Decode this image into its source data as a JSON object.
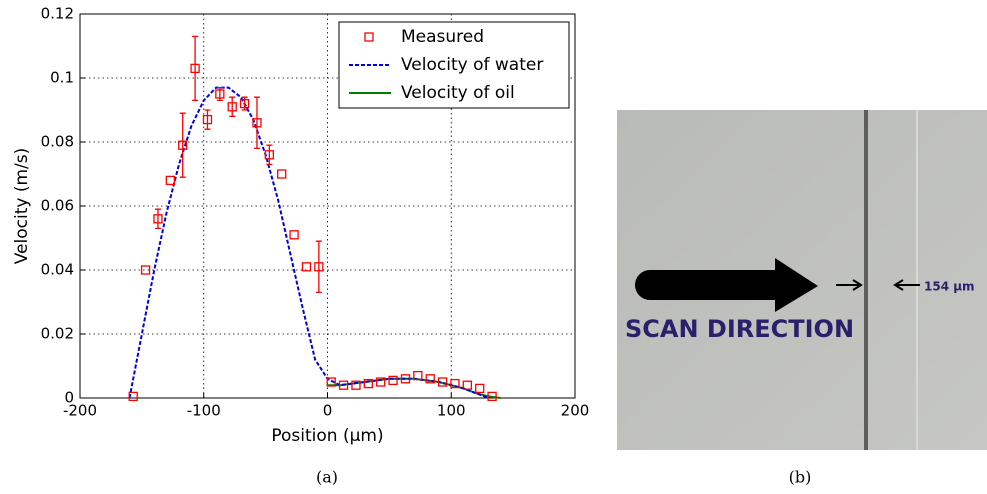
{
  "chart_data": {
    "type": "scatter",
    "xlabel": "Position (µm)",
    "ylabel": "Velocity (m/s)",
    "xlim": [
      -200,
      200
    ],
    "ylim": [
      0,
      0.12
    ],
    "xticks": [
      -200,
      -100,
      0,
      100,
      200
    ],
    "yticks": [
      0,
      0.02,
      0.04,
      0.06,
      0.08,
      0.1,
      0.12
    ],
    "grid": true,
    "legend": "upper right",
    "series": [
      {
        "name": "Measured",
        "color": "#ff0000",
        "style": "markers",
        "x": [
          -157,
          -147,
          -137,
          -127,
          -117,
          -107,
          -97,
          -87,
          -77,
          -67,
          -57,
          -47,
          -37,
          -27,
          -17,
          -7,
          3,
          13,
          23,
          33,
          43,
          53,
          63,
          73,
          83,
          93,
          103,
          113,
          123,
          133
        ],
        "values": [
          0.0005,
          0.04,
          0.056,
          0.068,
          0.079,
          0.103,
          0.087,
          0.095,
          0.091,
          0.092,
          0.086,
          0.076,
          0.07,
          0.051,
          0.041,
          0.041,
          0.005,
          0.004,
          0.004,
          0.0045,
          0.005,
          0.0055,
          0.006,
          0.007,
          0.006,
          0.005,
          0.0045,
          0.004,
          0.003,
          0.0005
        ],
        "errors": [
          null,
          null,
          0.003,
          null,
          0.01,
          0.01,
          0.003,
          0.002,
          0.003,
          0.002,
          0.008,
          0.003,
          null,
          null,
          null,
          0.008,
          null,
          null,
          null,
          null,
          null,
          null,
          null,
          null,
          null,
          null,
          null,
          null,
          null,
          null
        ]
      },
      {
        "name": "Velocity of water",
        "color": "#0000dd",
        "style": "dashed",
        "x": [
          -160,
          -150,
          -140,
          -130,
          -120,
          -110,
          -100,
          -90,
          -80,
          -70,
          -60,
          -50,
          -40,
          -30,
          -20,
          -10,
          0,
          10,
          20,
          30,
          40,
          50,
          60,
          70,
          80,
          90,
          100,
          110,
          120,
          130
        ],
        "values": [
          0,
          0.02,
          0.04,
          0.058,
          0.073,
          0.085,
          0.093,
          0.097,
          0.097,
          0.094,
          0.087,
          0.076,
          0.062,
          0.045,
          0.028,
          0.012,
          0.006,
          0.004,
          0.0045,
          0.005,
          0.0055,
          0.006,
          0.006,
          0.006,
          0.0055,
          0.005,
          0.004,
          0.003,
          0.0015,
          0
        ]
      },
      {
        "name": "Velocity of oil",
        "color": "#008000",
        "style": "solid",
        "x": [
          0,
          10,
          20,
          30,
          40,
          50,
          60,
          70,
          80,
          90,
          100,
          110,
          120,
          130,
          140
        ],
        "values": [
          0.004,
          0.004,
          0.0045,
          0.005,
          0.0055,
          0.006,
          0.006,
          0.006,
          0.0055,
          0.005,
          0.004,
          0.003,
          0.0015,
          0.0005,
          0
        ]
      }
    ]
  },
  "captions": [
    "(a)",
    "(b)"
  ],
  "image": {
    "label": "SCAN DIRECTION",
    "measure": "154 µm"
  }
}
